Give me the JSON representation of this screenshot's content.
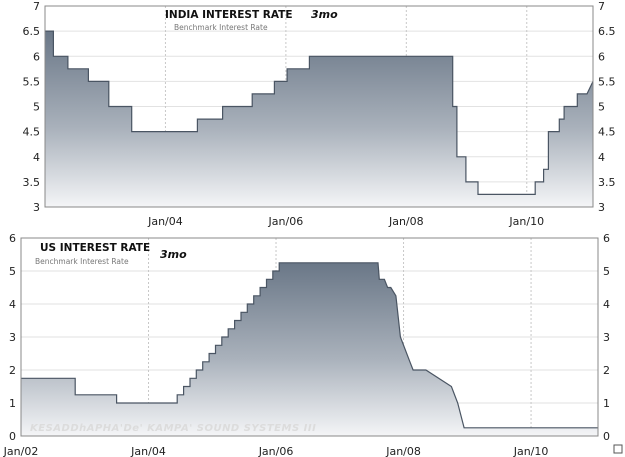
{
  "chart_data": [
    {
      "type": "area",
      "title": "INDIA INTEREST RATE",
      "title_tag": "3mo",
      "subtitle": "Benchmark Interest Rate",
      "ylim": [
        3,
        7
      ],
      "y_ticks": [
        "3",
        "3.5",
        "4",
        "4.5",
        "5",
        "5.5",
        "6",
        "6.5",
        "7"
      ],
      "x_ticks": [
        {
          "t": 2004,
          "label": "Jan/04"
        },
        {
          "t": 2006,
          "label": "Jan/06"
        },
        {
          "t": 2008,
          "label": "Jan/08"
        },
        {
          "t": 2010,
          "label": "Jan/10"
        }
      ],
      "grid": true,
      "fill_color": "#6a7787",
      "line_color": "#4a5563",
      "series": [
        {
          "x": [
            2002.0,
            2002.14,
            2002.14,
            2002.38,
            2002.38,
            2002.72,
            2002.72,
            2003.06,
            2003.06,
            2003.44,
            2003.44,
            2004.53,
            2004.53,
            2004.95,
            2004.95,
            2005.44,
            2005.44,
            2005.81,
            2005.81,
            2006.02,
            2006.02,
            2006.39,
            2006.39,
            2006.48,
            2006.48,
            2008.77,
            2008.77,
            2008.84,
            2008.84,
            2008.99,
            2008.99,
            2009.19,
            2009.19,
            2009.25,
            2009.25,
            2010.14,
            2010.14,
            2010.28,
            2010.28,
            2010.36,
            2010.36,
            2010.54,
            2010.54,
            2010.62,
            2010.62,
            2010.84,
            2010.84,
            2011.0,
            2011.1
          ],
          "y": [
            6.5,
            6.5,
            6.0,
            6.0,
            5.75,
            5.75,
            5.5,
            5.5,
            5.0,
            5.0,
            4.5,
            4.5,
            4.75,
            4.75,
            5.0,
            5.0,
            5.25,
            5.25,
            5.5,
            5.5,
            5.75,
            5.75,
            6.0,
            6.0,
            6.0,
            6.0,
            5.0,
            5.0,
            4.0,
            4.0,
            3.5,
            3.5,
            3.25,
            3.25,
            3.25,
            3.25,
            3.5,
            3.5,
            3.75,
            3.75,
            4.5,
            4.5,
            4.75,
            4.75,
            5.0,
            5.0,
            5.25,
            5.25,
            5.5
          ]
        }
      ]
    },
    {
      "type": "area",
      "title": "US INTEREST RATE",
      "title_tag": "3mo",
      "subtitle": "Benchmark Interest Rate",
      "watermark": "KESADDhAPHA'De' KAMPA' SOUND SYSTEMS III",
      "ylim": [
        0,
        6
      ],
      "y_ticks": [
        "0",
        "1",
        "2",
        "3",
        "4",
        "5",
        "6"
      ],
      "x_ticks": [
        {
          "t": 2002,
          "label": "Jan/02"
        },
        {
          "t": 2004,
          "label": "Jan/04"
        },
        {
          "t": 2006,
          "label": "Jan/06"
        },
        {
          "t": 2008,
          "label": "Jan/08"
        },
        {
          "t": 2010,
          "label": "Jan/10"
        }
      ],
      "grid": true,
      "fill_color": "#6a7787",
      "line_color": "#4a5563",
      "series": [
        {
          "x": [
            2002.0,
            2002.85,
            2002.85,
            2003.5,
            2003.5,
            2004.45,
            2004.45,
            2004.55,
            2004.55,
            2004.65,
            2004.65,
            2004.75,
            2004.75,
            2004.85,
            2004.85,
            2004.95,
            2004.95,
            2005.05,
            2005.05,
            2005.15,
            2005.15,
            2005.25,
            2005.25,
            2005.35,
            2005.35,
            2005.45,
            2005.45,
            2005.55,
            2005.55,
            2005.65,
            2005.65,
            2005.75,
            2005.75,
            2005.85,
            2005.85,
            2005.95,
            2005.95,
            2006.05,
            2006.05,
            2006.15,
            2006.15,
            2006.25,
            2006.25,
            2006.35,
            2006.35,
            2006.45,
            2006.45,
            2006.55,
            2006.55,
            2006.8,
            2007.6,
            2007.62,
            2007.7,
            2007.75,
            2007.8,
            2007.88,
            2007.88,
            2007.95,
            2007.95,
            2008.1,
            2008.1,
            2008.15,
            2008.15,
            2008.35,
            2008.35,
            2008.75,
            2008.75,
            2008.85,
            2008.85,
            2008.95,
            2008.95,
            2011.05
          ],
          "y": [
            1.75,
            1.75,
            1.25,
            1.25,
            1.0,
            1.0,
            1.25,
            1.25,
            1.5,
            1.5,
            1.75,
            1.75,
            2.0,
            2.0,
            2.25,
            2.25,
            2.5,
            2.5,
            2.75,
            2.75,
            3.0,
            3.0,
            3.25,
            3.25,
            3.5,
            3.5,
            3.75,
            3.75,
            4.0,
            4.0,
            4.25,
            4.25,
            4.5,
            4.5,
            4.75,
            4.75,
            5.0,
            5.0,
            5.25,
            5.25,
            5.25,
            5.25,
            5.25,
            5.25,
            5.25,
            5.25,
            5.25,
            5.25,
            5.25,
            5.25,
            5.25,
            4.75,
            4.75,
            4.5,
            4.5,
            4.25,
            4.25,
            3.0,
            3.0,
            2.25,
            2.25,
            2.0,
            2.0,
            2.0,
            2.0,
            1.5,
            1.5,
            1.0,
            1.0,
            0.25,
            0.25,
            0.25
          ]
        }
      ]
    }
  ]
}
